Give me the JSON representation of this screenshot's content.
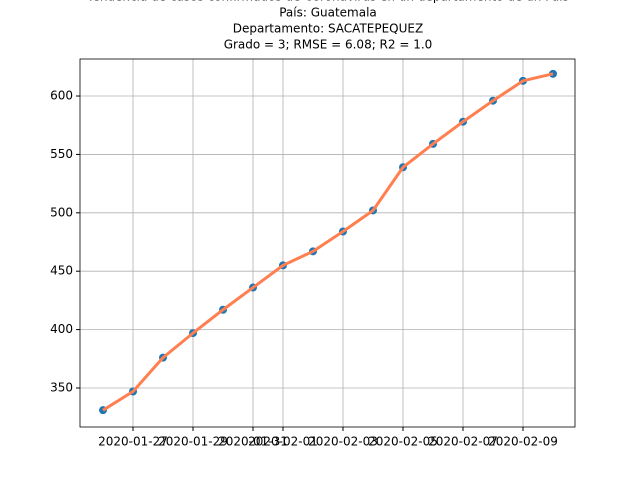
{
  "chart_data": {
    "type": "line",
    "title": [
      "Tendencia de casos confirmados de Coronavirus en un departamento de un País",
      "País: Guatemala",
      "Departamento: SACATEPEQUEZ",
      "Grado = 3; RMSE = 6.08; R2 = 1.0"
    ],
    "x": [
      "2020-01-26",
      "2020-01-27",
      "2020-01-28",
      "2020-01-29",
      "2020-01-30",
      "2020-01-31",
      "2020-02-01",
      "2020-02-02",
      "2020-02-03",
      "2020-02-04",
      "2020-02-05",
      "2020-02-06",
      "2020-02-07",
      "2020-02-08",
      "2020-02-09",
      "2020-02-10"
    ],
    "series": [
      {
        "color": "#1f77b4",
        "marker": "scatter",
        "values": [
          331,
          347,
          376,
          397,
          417,
          436,
          455,
          467,
          484,
          502,
          539,
          559,
          578,
          596,
          613,
          619
        ]
      },
      {
        "color": "#ff7f50",
        "marker": "line",
        "values": [
          331,
          347,
          376,
          397,
          417,
          436,
          455,
          467,
          484,
          502,
          539,
          559,
          578,
          596,
          613,
          619
        ]
      }
    ],
    "xlim": [
      "2020-01-25T05:36:00Z",
      "2020-02-10T17:36:00Z"
    ],
    "xticks": [
      "2020-01-27",
      "2020-01-29",
      "2020-01-31",
      "2020-02-01",
      "2020-02-03",
      "2020-02-05",
      "2020-02-07",
      "2020-02-09"
    ],
    "ylim": [
      316.6,
      631.7
    ],
    "yticks": [
      350,
      400,
      450,
      500,
      550,
      600
    ],
    "grid": true
  }
}
